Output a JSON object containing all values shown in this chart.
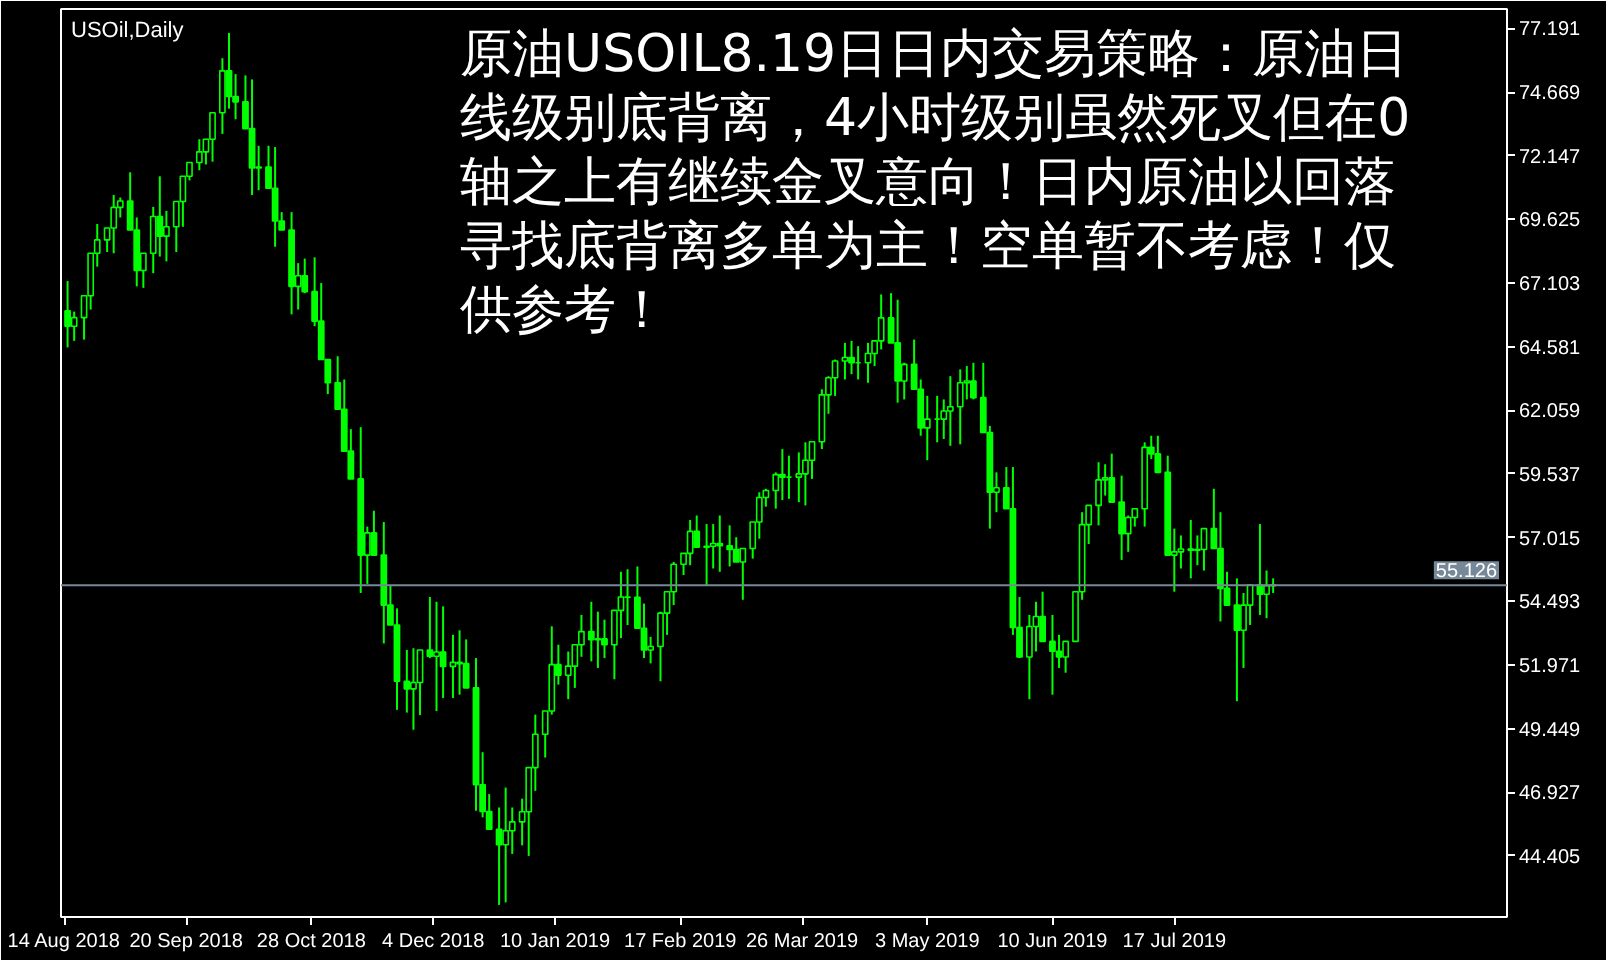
{
  "chart_data": {
    "type": "candlestick",
    "title": "USOil,Daily",
    "annotations": [
      "原油USOIL8.19日日内交易策略：原油日线级别底背离，4小时级别虽然死叉但在0轴之上有继续金叉意向！日内原油以回落寻找底背离多单为主！空单暂不考虑！仅供参考！"
    ],
    "color": "#00ff00",
    "xlim": [
      "2018-08-13",
      "2019-10-26"
    ],
    "ylim": [
      41.98,
      77.96
    ],
    "xticks": [
      {
        "value": "2018-08-14",
        "label": "14 Aug 2018"
      },
      {
        "value": "2018-09-20",
        "label": "20 Sep 2018"
      },
      {
        "value": "2018-10-28",
        "label": "28 Oct 2018"
      },
      {
        "value": "2018-12-04",
        "label": "4 Dec 2018"
      },
      {
        "value": "2019-01-10",
        "label": "10 Jan 2019"
      },
      {
        "value": "2019-02-17",
        "label": "17 Feb 2019"
      },
      {
        "value": "2019-03-26",
        "label": "26 Mar 2019"
      },
      {
        "value": "2019-05-03",
        "label": "3 May 2019"
      },
      {
        "value": "2019-06-10",
        "label": "10 Jun 2019"
      },
      {
        "value": "2019-07-17",
        "label": "17 Jul 2019"
      }
    ],
    "yticks": [
      44.405,
      46.927,
      49.449,
      51.971,
      54.493,
      57.015,
      59.537,
      62.059,
      64.581,
      67.103,
      69.625,
      72.147,
      74.669,
      77.191
    ],
    "ref_lines": [
      {
        "axis": "y",
        "value": 55.126,
        "label": "55.126",
        "color": "#778899"
      }
    ],
    "x": [
      "2018-08-15",
      "2018-08-17",
      "2018-08-20",
      "2018-08-22",
      "2018-08-24",
      "2018-08-27",
      "2018-08-29",
      "2018-08-31",
      "2018-09-03",
      "2018-09-05",
      "2018-09-07",
      "2018-09-10",
      "2018-09-12",
      "2018-09-14",
      "2018-09-17",
      "2018-09-19",
      "2018-09-21",
      "2018-09-24",
      "2018-09-26",
      "2018-09-28",
      "2018-10-01",
      "2018-10-03",
      "2018-10-05",
      "2018-10-08",
      "2018-10-10",
      "2018-10-12",
      "2018-10-15",
      "2018-10-17",
      "2018-10-19",
      "2018-10-22",
      "2018-10-24",
      "2018-10-26",
      "2018-10-29",
      "2018-10-31",
      "2018-11-02",
      "2018-11-05",
      "2018-11-07",
      "2018-11-09",
      "2018-11-12",
      "2018-11-14",
      "2018-11-16",
      "2018-11-19",
      "2018-11-21",
      "2018-11-23",
      "2018-11-26",
      "2018-11-28",
      "2018-11-30",
      "2018-12-03",
      "2018-12-05",
      "2018-12-07",
      "2018-12-10",
      "2018-12-12",
      "2018-12-14",
      "2018-12-17",
      "2018-12-19",
      "2018-12-21",
      "2018-12-24",
      "2018-12-26",
      "2018-12-28",
      "2018-12-31",
      "2019-01-02",
      "2019-01-04",
      "2019-01-07",
      "2019-01-09",
      "2019-01-11",
      "2019-01-14",
      "2019-01-16",
      "2019-01-18",
      "2019-01-21",
      "2019-01-23",
      "2019-01-25",
      "2019-01-28",
      "2019-01-30",
      "2019-02-01",
      "2019-02-04",
      "2019-02-06",
      "2019-02-08",
      "2019-02-11",
      "2019-02-13",
      "2019-02-15",
      "2019-02-18",
      "2019-02-20",
      "2019-02-22",
      "2019-02-25",
      "2019-02-27",
      "2019-03-01",
      "2019-03-04",
      "2019-03-06",
      "2019-03-08",
      "2019-03-11",
      "2019-03-13",
      "2019-03-15",
      "2019-03-18",
      "2019-03-20",
      "2019-03-22",
      "2019-03-25",
      "2019-03-27",
      "2019-03-29",
      "2019-04-01",
      "2019-04-03",
      "2019-04-05",
      "2019-04-08",
      "2019-04-10",
      "2019-04-12",
      "2019-04-15",
      "2019-04-17",
      "2019-04-19",
      "2019-04-22",
      "2019-04-24",
      "2019-04-26",
      "2019-04-29",
      "2019-05-01",
      "2019-05-03",
      "2019-05-06",
      "2019-05-08",
      "2019-05-10",
      "2019-05-13",
      "2019-05-15",
      "2019-05-17",
      "2019-05-20",
      "2019-05-22",
      "2019-05-24",
      "2019-05-27",
      "2019-05-29",
      "2019-05-31",
      "2019-06-03",
      "2019-06-05",
      "2019-06-07",
      "2019-06-10",
      "2019-06-12",
      "2019-06-14",
      "2019-06-17",
      "2019-06-19",
      "2019-06-21",
      "2019-06-24",
      "2019-06-26",
      "2019-06-28",
      "2019-07-01",
      "2019-07-03",
      "2019-07-05",
      "2019-07-08",
      "2019-07-10",
      "2019-07-12",
      "2019-07-15",
      "2019-07-17",
      "2019-07-19",
      "2019-07-22",
      "2019-07-24",
      "2019-07-26",
      "2019-07-29",
      "2019-07-31",
      "2019-08-02",
      "2019-08-05",
      "2019-08-07",
      "2019-08-09",
      "2019-08-12",
      "2019-08-14",
      "2019-08-16"
    ],
    "ohlc": [
      [
        66.0,
        67.18,
        64.55,
        65.39
      ],
      [
        65.39,
        65.97,
        64.81,
        65.73
      ],
      [
        65.73,
        66.6,
        64.86,
        66.6
      ],
      [
        66.6,
        68.28,
        66.05,
        68.28
      ],
      [
        68.28,
        69.44,
        67.75,
        68.81
      ],
      [
        68.81,
        69.28,
        68.33,
        69.28
      ],
      [
        69.28,
        70.59,
        68.28,
        70.1
      ],
      [
        70.1,
        70.49,
        69.7,
        70.35
      ],
      [
        70.35,
        71.49,
        69.2,
        69.2
      ],
      [
        69.2,
        69.7,
        66.97,
        67.6
      ],
      [
        67.6,
        68.28,
        66.91,
        68.28
      ],
      [
        68.28,
        70.12,
        67.49,
        69.74
      ],
      [
        69.74,
        71.33,
        68.15,
        68.96
      ],
      [
        68.96,
        69.96,
        67.96,
        69.33
      ],
      [
        69.33,
        70.33,
        68.33,
        70.33
      ],
      [
        70.33,
        71.33,
        69.33,
        71.33
      ],
      [
        71.33,
        71.88,
        71.17,
        71.88
      ],
      [
        71.88,
        72.8,
        71.57,
        72.3
      ],
      [
        72.3,
        72.8,
        71.8,
        72.8
      ],
      [
        72.8,
        73.85,
        71.91,
        73.85
      ],
      [
        73.85,
        76.01,
        73.01,
        75.51
      ],
      [
        75.51,
        77.01,
        74.01,
        74.49
      ],
      [
        74.49,
        75.38,
        73.59,
        74.28
      ],
      [
        74.28,
        75.33,
        73.22,
        73.22
      ],
      [
        73.22,
        75.17,
        70.59,
        71.66
      ],
      [
        71.66,
        72.54,
        70.78,
        71.7
      ],
      [
        71.7,
        72.54,
        70.86,
        70.86
      ],
      [
        70.86,
        72.49,
        68.54,
        69.56
      ],
      [
        69.56,
        69.91,
        69.2,
        69.2
      ],
      [
        69.2,
        69.91,
        65.86,
        66.97
      ],
      [
        66.97,
        67.89,
        66.05,
        67.39
      ],
      [
        67.39,
        68.07,
        66.7,
        66.76
      ],
      [
        66.76,
        68.12,
        65.39,
        65.59
      ],
      [
        65.59,
        67.1,
        64.07,
        64.07
      ],
      [
        64.07,
        64.07,
        62.7,
        63.15
      ],
      [
        63.15,
        64.2,
        62.1,
        62.1
      ],
      [
        62.1,
        63.28,
        60.44,
        60.44
      ],
      [
        60.44,
        61.31,
        59.34,
        59.34
      ],
      [
        59.34,
        61.39,
        54.82,
        56.32
      ],
      [
        56.32,
        57.45,
        55.18,
        57.2
      ],
      [
        57.2,
        58.08,
        56.32,
        56.32
      ],
      [
        56.32,
        57.63,
        52.82,
        54.34
      ],
      [
        54.34,
        55.13,
        53.55,
        53.55
      ],
      [
        53.55,
        54.21,
        50.19,
        51.32
      ],
      [
        51.32,
        52.56,
        50.08,
        51.02
      ],
      [
        51.02,
        52.63,
        49.4,
        51.27
      ],
      [
        51.27,
        52.56,
        49.98,
        52.56
      ],
      [
        52.56,
        54.66,
        52.24,
        52.31
      ],
      [
        52.31,
        54.47,
        50.14,
        52.48
      ],
      [
        52.48,
        54.29,
        50.66,
        51.91
      ],
      [
        51.91,
        53.16,
        50.66,
        52.07
      ],
      [
        52.07,
        53.34,
        50.79,
        52.02
      ],
      [
        52.02,
        52.98,
        51.06,
        51.06
      ],
      [
        51.06,
        52.24,
        46.19,
        47.22
      ],
      [
        47.22,
        48.51,
        45.93,
        46.16
      ],
      [
        46.16,
        46.85,
        45.46,
        45.46
      ],
      [
        45.46,
        46.32,
        42.46,
        44.84
      ],
      [
        44.84,
        47.11,
        42.56,
        45.4
      ],
      [
        45.4,
        46.32,
        44.48,
        45.75
      ],
      [
        45.75,
        46.67,
        44.82,
        46.15
      ],
      [
        46.15,
        47.9,
        44.4,
        47.9
      ],
      [
        47.9,
        50.0,
        46.98,
        49.22
      ],
      [
        49.22,
        50.14,
        48.3,
        50.14
      ],
      [
        50.14,
        53.5,
        50.0,
        51.98
      ],
      [
        51.98,
        52.77,
        51.19,
        51.56
      ],
      [
        51.56,
        52.5,
        50.61,
        51.92
      ],
      [
        51.92,
        52.77,
        51.06,
        52.77
      ],
      [
        52.77,
        53.95,
        52.29,
        53.29
      ],
      [
        53.29,
        54.47,
        52.11,
        52.97
      ],
      [
        52.97,
        54.08,
        51.85,
        53.0
      ],
      [
        53.0,
        53.76,
        52.24,
        52.77
      ],
      [
        52.77,
        54.13,
        51.4,
        54.13
      ],
      [
        54.13,
        55.66,
        53.03,
        54.66
      ],
      [
        54.66,
        55.76,
        53.55,
        54.65
      ],
      [
        54.65,
        55.87,
        53.42,
        53.42
      ],
      [
        53.42,
        54.4,
        52.24,
        52.56
      ],
      [
        52.56,
        53.08,
        52.03,
        52.7
      ],
      [
        52.7,
        54.08,
        51.32,
        54.02
      ],
      [
        54.02,
        54.87,
        53.16,
        54.87
      ],
      [
        54.87,
        56.05,
        54.34,
        55.96
      ],
      [
        55.96,
        56.39,
        55.53,
        56.39
      ],
      [
        56.39,
        57.71,
        55.92,
        57.26
      ],
      [
        57.26,
        57.89,
        56.63,
        56.63
      ],
      [
        56.63,
        57.55,
        55.13,
        56.67
      ],
      [
        56.67,
        57.55,
        55.79,
        56.78
      ],
      [
        56.78,
        57.89,
        55.66,
        56.69
      ],
      [
        56.69,
        57.5,
        55.87,
        56.54
      ],
      [
        56.54,
        57.03,
        56.05,
        56.05
      ],
      [
        56.05,
        56.58,
        54.55,
        56.58
      ],
      [
        56.58,
        57.63,
        56.18,
        57.63
      ],
      [
        57.63,
        58.81,
        56.97,
        58.6
      ],
      [
        58.6,
        58.95,
        58.24,
        58.88
      ],
      [
        58.88,
        59.6,
        58.16,
        59.51
      ],
      [
        59.51,
        60.52,
        58.5,
        59.41
      ],
      [
        59.41,
        60.26,
        58.55,
        59.41
      ],
      [
        59.41,
        60.39,
        58.42,
        59.54
      ],
      [
        59.54,
        60.79,
        58.29,
        60.08
      ],
      [
        60.08,
        60.81,
        59.34,
        60.81
      ],
      [
        60.81,
        62.89,
        60.52,
        62.67
      ],
      [
        62.67,
        63.41,
        61.92,
        63.35
      ],
      [
        63.35,
        64.07,
        62.63,
        64.01
      ],
      [
        64.01,
        64.73,
        63.28,
        64.15
      ],
      [
        64.15,
        64.81,
        63.49,
        63.94
      ],
      [
        63.94,
        64.6,
        63.28,
        63.94
      ],
      [
        63.94,
        64.73,
        63.15,
        64.31
      ],
      [
        64.31,
        64.81,
        63.81,
        64.81
      ],
      [
        64.81,
        66.65,
        64.47,
        65.72
      ],
      [
        65.72,
        66.7,
        64.73,
        64.73
      ],
      [
        64.73,
        66.44,
        62.36,
        63.22
      ],
      [
        63.22,
        63.94,
        62.49,
        63.88
      ],
      [
        63.88,
        64.86,
        62.89,
        62.89
      ],
      [
        62.89,
        63.28,
        61.05,
        61.36
      ],
      [
        61.36,
        62.63,
        60.08,
        61.71
      ],
      [
        61.71,
        62.63,
        60.79,
        61.71
      ],
      [
        61.71,
        62.49,
        60.92,
        62.03
      ],
      [
        62.03,
        63.41,
        60.65,
        62.2
      ],
      [
        62.2,
        63.68,
        60.71,
        63.15
      ],
      [
        63.15,
        63.81,
        62.49,
        63.22
      ],
      [
        63.22,
        63.94,
        62.49,
        62.56
      ],
      [
        62.56,
        63.94,
        61.18,
        61.18
      ],
      [
        61.18,
        61.44,
        57.37,
        58.81
      ],
      [
        58.81,
        59.6,
        58.02,
        58.99
      ],
      [
        58.99,
        59.81,
        58.16,
        58.16
      ],
      [
        58.16,
        59.81,
        53.16,
        53.45
      ],
      [
        53.45,
        54.66,
        52.24,
        52.28
      ],
      [
        52.28,
        53.95,
        50.61,
        53.49
      ],
      [
        53.49,
        54.47,
        52.5,
        53.89
      ],
      [
        53.89,
        54.87,
        52.9,
        52.9
      ],
      [
        52.9,
        53.95,
        50.79,
        52.51
      ],
      [
        52.51,
        53.16,
        51.85,
        52.28
      ],
      [
        52.28,
        52.9,
        51.66,
        52.9
      ],
      [
        52.9,
        54.87,
        52.9,
        54.87
      ],
      [
        54.87,
        58.02,
        54.55,
        57.53
      ],
      [
        57.53,
        58.29,
        56.76,
        58.29
      ],
      [
        58.29,
        60.0,
        57.5,
        59.3
      ],
      [
        59.3,
        59.92,
        58.68,
        59.38
      ],
      [
        59.38,
        60.34,
        58.42,
        58.42
      ],
      [
        58.42,
        59.47,
        56.13,
        57.17
      ],
      [
        57.17,
        57.89,
        56.45,
        57.81
      ],
      [
        57.81,
        58.16,
        57.45,
        58.16
      ],
      [
        58.16,
        60.79,
        57.45,
        60.59
      ],
      [
        60.59,
        61.05,
        60.13,
        60.33
      ],
      [
        60.33,
        61.05,
        59.6,
        59.6
      ],
      [
        59.6,
        60.26,
        56.32,
        56.32
      ],
      [
        56.32,
        57.37,
        54.87,
        56.45
      ],
      [
        56.45,
        57.1,
        55.79,
        56.56
      ],
      [
        56.56,
        57.71,
        55.4,
        56.51
      ],
      [
        56.51,
        57.1,
        55.92,
        56.54
      ],
      [
        56.54,
        57.37,
        55.71,
        57.37
      ],
      [
        57.37,
        58.95,
        56.58,
        56.58
      ],
      [
        56.58,
        58.02,
        53.69,
        55.0
      ],
      [
        55.0,
        55.66,
        54.34,
        54.34
      ],
      [
        54.34,
        55.4,
        50.53,
        53.34
      ],
      [
        53.34,
        54.82,
        51.85,
        54.34
      ],
      [
        54.34,
        55.13,
        53.55,
        55.13
      ],
      [
        55.13,
        57.55,
        53.95,
        54.77
      ],
      [
        54.77,
        55.71,
        53.82,
        55.11
      ],
      [
        55.11,
        55.4,
        54.82,
        55.13
      ]
    ]
  }
}
